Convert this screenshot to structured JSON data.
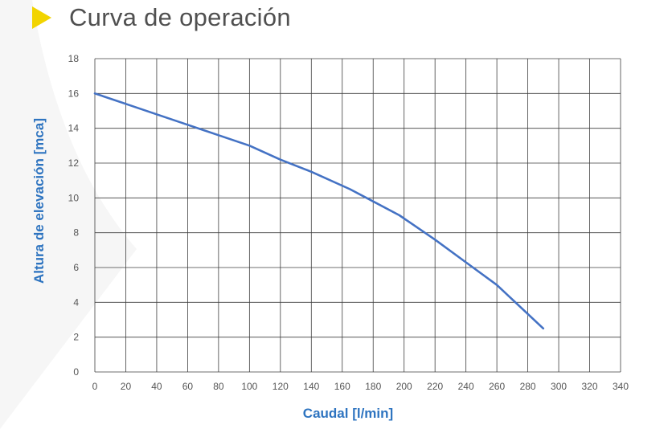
{
  "header": {
    "title": "Curva de operación",
    "icon": "play-triangle-icon",
    "icon_color": "#f2d400"
  },
  "chart_data": {
    "type": "line",
    "title": "",
    "xlabel": "Caudal [l/min]",
    "ylabel": "Altura de elevación [mca]",
    "xlim": [
      0,
      340
    ],
    "ylim": [
      0,
      18
    ],
    "x_ticks": [
      0,
      20,
      40,
      60,
      80,
      100,
      120,
      140,
      160,
      180,
      200,
      220,
      240,
      260,
      280,
      300,
      320,
      340
    ],
    "y_ticks": [
      0,
      2,
      4,
      6,
      8,
      10,
      12,
      14,
      16,
      18
    ],
    "grid": true,
    "legend": "none",
    "series": [
      {
        "color": "#4472c4",
        "points": [
          {
            "x": 0,
            "y": 16
          },
          {
            "x": 20,
            "y": 15.4
          },
          {
            "x": 40,
            "y": 14.8
          },
          {
            "x": 60,
            "y": 14.2
          },
          {
            "x": 80,
            "y": 13.6
          },
          {
            "x": 100,
            "y": 13.0
          },
          {
            "x": 120,
            "y": 12.2
          },
          {
            "x": 140,
            "y": 11.5
          },
          {
            "x": 165,
            "y": 10.5
          },
          {
            "x": 180,
            "y": 9.8
          },
          {
            "x": 197,
            "y": 9.0
          },
          {
            "x": 220,
            "y": 7.6
          },
          {
            "x": 240,
            "y": 6.3
          },
          {
            "x": 260,
            "y": 5.0
          },
          {
            "x": 290,
            "y": 2.5
          }
        ]
      }
    ],
    "colors": {
      "axis_title": "#2e74c0",
      "grid": "#3f3f3f",
      "tick_label": "#555555"
    }
  }
}
